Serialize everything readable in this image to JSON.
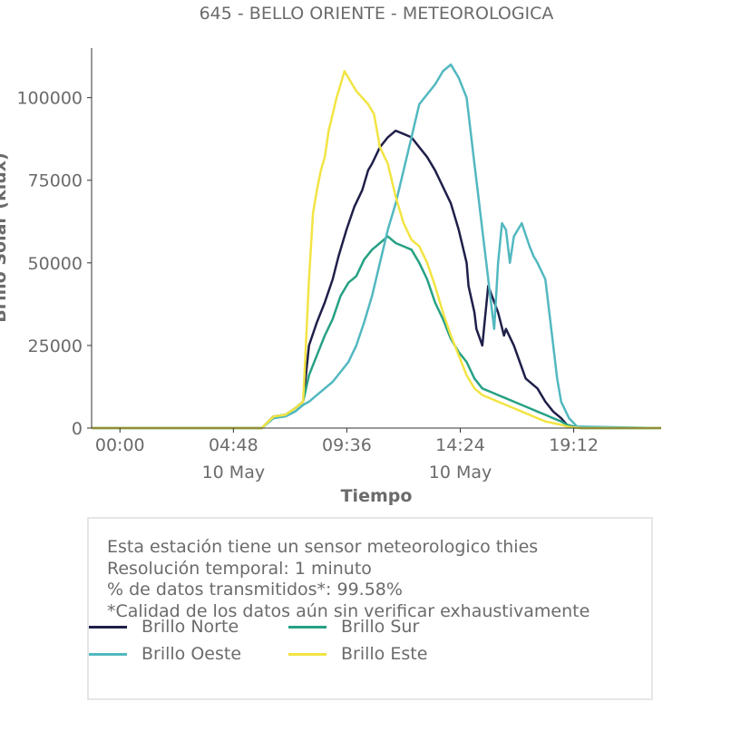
{
  "chart_data": {
    "type": "line",
    "title": "645 - BELLO ORIENTE - METEOROLOGICA",
    "xlabel": "Tiempo",
    "ylabel": "Brillo Solar (klux)",
    "ylim": [
      0,
      115000
    ],
    "xlim_minutes": [
      -72,
      1374
    ],
    "grid": false,
    "x_ticks": [
      {
        "minute": 0,
        "label": "00:00",
        "sublabel": ""
      },
      {
        "minute": 288,
        "label": "04:48",
        "sublabel": "10 May"
      },
      {
        "minute": 576,
        "label": "09:36",
        "sublabel": ""
      },
      {
        "minute": 864,
        "label": "14:24",
        "sublabel": "10 May"
      },
      {
        "minute": 1152,
        "label": "19:12",
        "sublabel": ""
      }
    ],
    "y_ticks": [
      {
        "value": 0,
        "label": "0"
      },
      {
        "value": 25000,
        "label": "25000"
      },
      {
        "value": 50000,
        "label": "50000"
      },
      {
        "value": 75000,
        "label": "75000"
      },
      {
        "value": 100000,
        "label": "100000"
      }
    ],
    "series": [
      {
        "name": "Brillo Norte",
        "color": "#1f1f4a",
        "x": [
          -72,
          360,
          390,
          420,
          445,
          465,
          480,
          500,
          520,
          540,
          555,
          575,
          595,
          615,
          630,
          640,
          660,
          680,
          700,
          720,
          740,
          760,
          780,
          800,
          820,
          840,
          860,
          880,
          885,
          900,
          905,
          920,
          935,
          960,
          975,
          980,
          1000,
          1030,
          1060,
          1080,
          1100,
          1120,
          1135,
          1150,
          1170,
          1374
        ],
        "y": [
          0,
          0,
          3500,
          4000,
          6000,
          8000,
          25000,
          32000,
          38000,
          45000,
          52000,
          60000,
          67000,
          72000,
          78000,
          80000,
          85000,
          88000,
          90000,
          89000,
          88000,
          85000,
          82000,
          78000,
          73000,
          68000,
          60000,
          50000,
          43000,
          35000,
          30000,
          25000,
          43000,
          35000,
          28000,
          30000,
          25000,
          15000,
          12000,
          8000,
          5000,
          3000,
          1000,
          500,
          0,
          0
        ]
      },
      {
        "name": "Brillo Sur",
        "color": "#27a184",
        "x": [
          -72,
          360,
          390,
          420,
          445,
          465,
          480,
          500,
          520,
          540,
          560,
          580,
          600,
          620,
          640,
          660,
          680,
          700,
          720,
          740,
          760,
          780,
          800,
          820,
          840,
          860,
          880,
          900,
          920,
          940,
          960,
          980,
          1000,
          1020,
          1040,
          1060,
          1080,
          1100,
          1120,
          1135,
          1150,
          1170,
          1374
        ],
        "y": [
          0,
          0,
          3500,
          4000,
          6000,
          8000,
          16000,
          22000,
          28000,
          33000,
          40000,
          44000,
          46000,
          51000,
          54000,
          56000,
          58000,
          56000,
          55000,
          54000,
          50000,
          45000,
          38000,
          33000,
          27000,
          23000,
          20000,
          15000,
          12000,
          11000,
          10000,
          9000,
          8000,
          7000,
          6000,
          5000,
          4000,
          3000,
          2000,
          1000,
          500,
          0,
          0
        ]
      },
      {
        "name": "Brillo Oeste",
        "color": "#52b8c0",
        "x": [
          -72,
          360,
          390,
          420,
          445,
          465,
          480,
          500,
          520,
          540,
          560,
          580,
          600,
          620,
          640,
          660,
          680,
          700,
          720,
          740,
          760,
          780,
          800,
          820,
          840,
          860,
          880,
          890,
          900,
          910,
          920,
          930,
          940,
          950,
          960,
          970,
          980,
          990,
          1000,
          1020,
          1040,
          1050,
          1060,
          1080,
          1100,
          1110,
          1120,
          1140,
          1160,
          1374
        ],
        "y": [
          0,
          0,
          3000,
          3500,
          5000,
          7000,
          8000,
          10000,
          12000,
          14000,
          17000,
          20000,
          25000,
          32000,
          40000,
          50000,
          60000,
          68000,
          78000,
          88000,
          98000,
          101000,
          104000,
          108000,
          110000,
          106000,
          100000,
          90000,
          80000,
          70000,
          60000,
          50000,
          40000,
          30000,
          50000,
          62000,
          60000,
          50000,
          58000,
          62000,
          55000,
          52000,
          50000,
          45000,
          25000,
          15000,
          8000,
          3000,
          500,
          0
        ]
      },
      {
        "name": "Brillo Este",
        "color": "#f2e443",
        "x": [
          -72,
          360,
          390,
          420,
          445,
          465,
          470,
          480,
          490,
          500,
          510,
          520,
          530,
          540,
          550,
          560,
          570,
          580,
          590,
          600,
          615,
          630,
          645,
          660,
          680,
          700,
          720,
          740,
          760,
          780,
          800,
          820,
          840,
          860,
          880,
          900,
          920,
          940,
          960,
          980,
          1000,
          1020,
          1040,
          1060,
          1080,
          1100,
          1120,
          1135,
          1150,
          1170,
          1374
        ],
        "y": [
          0,
          0,
          3500,
          4000,
          6000,
          8000,
          20000,
          45000,
          65000,
          72000,
          78000,
          82000,
          90000,
          95000,
          100000,
          104000,
          108000,
          106000,
          104000,
          102000,
          100000,
          98000,
          95000,
          85000,
          80000,
          70000,
          62000,
          57000,
          55000,
          50000,
          43000,
          35000,
          28000,
          22000,
          16000,
          12000,
          10000,
          9000,
          8000,
          7000,
          6000,
          5000,
          4000,
          3000,
          2000,
          1500,
          1000,
          500,
          200,
          0,
          0
        ]
      }
    ],
    "legend_position": "bottom"
  },
  "info": {
    "line1": "Esta estación tiene un sensor meteorologico thies",
    "line2": "Resolución temporal: 1 minuto",
    "line3": "% de datos transmitidos*: 99.58%",
    "line4": "*Calidad de los datos aún sin verificar exhaustivamente"
  },
  "legend": [
    {
      "label": "Brillo Norte",
      "color": "#1f1f4a"
    },
    {
      "label": "Brillo Sur",
      "color": "#27a184"
    },
    {
      "label": "Brillo Oeste",
      "color": "#52b8c0"
    },
    {
      "label": "Brillo Este",
      "color": "#f2e443"
    }
  ]
}
